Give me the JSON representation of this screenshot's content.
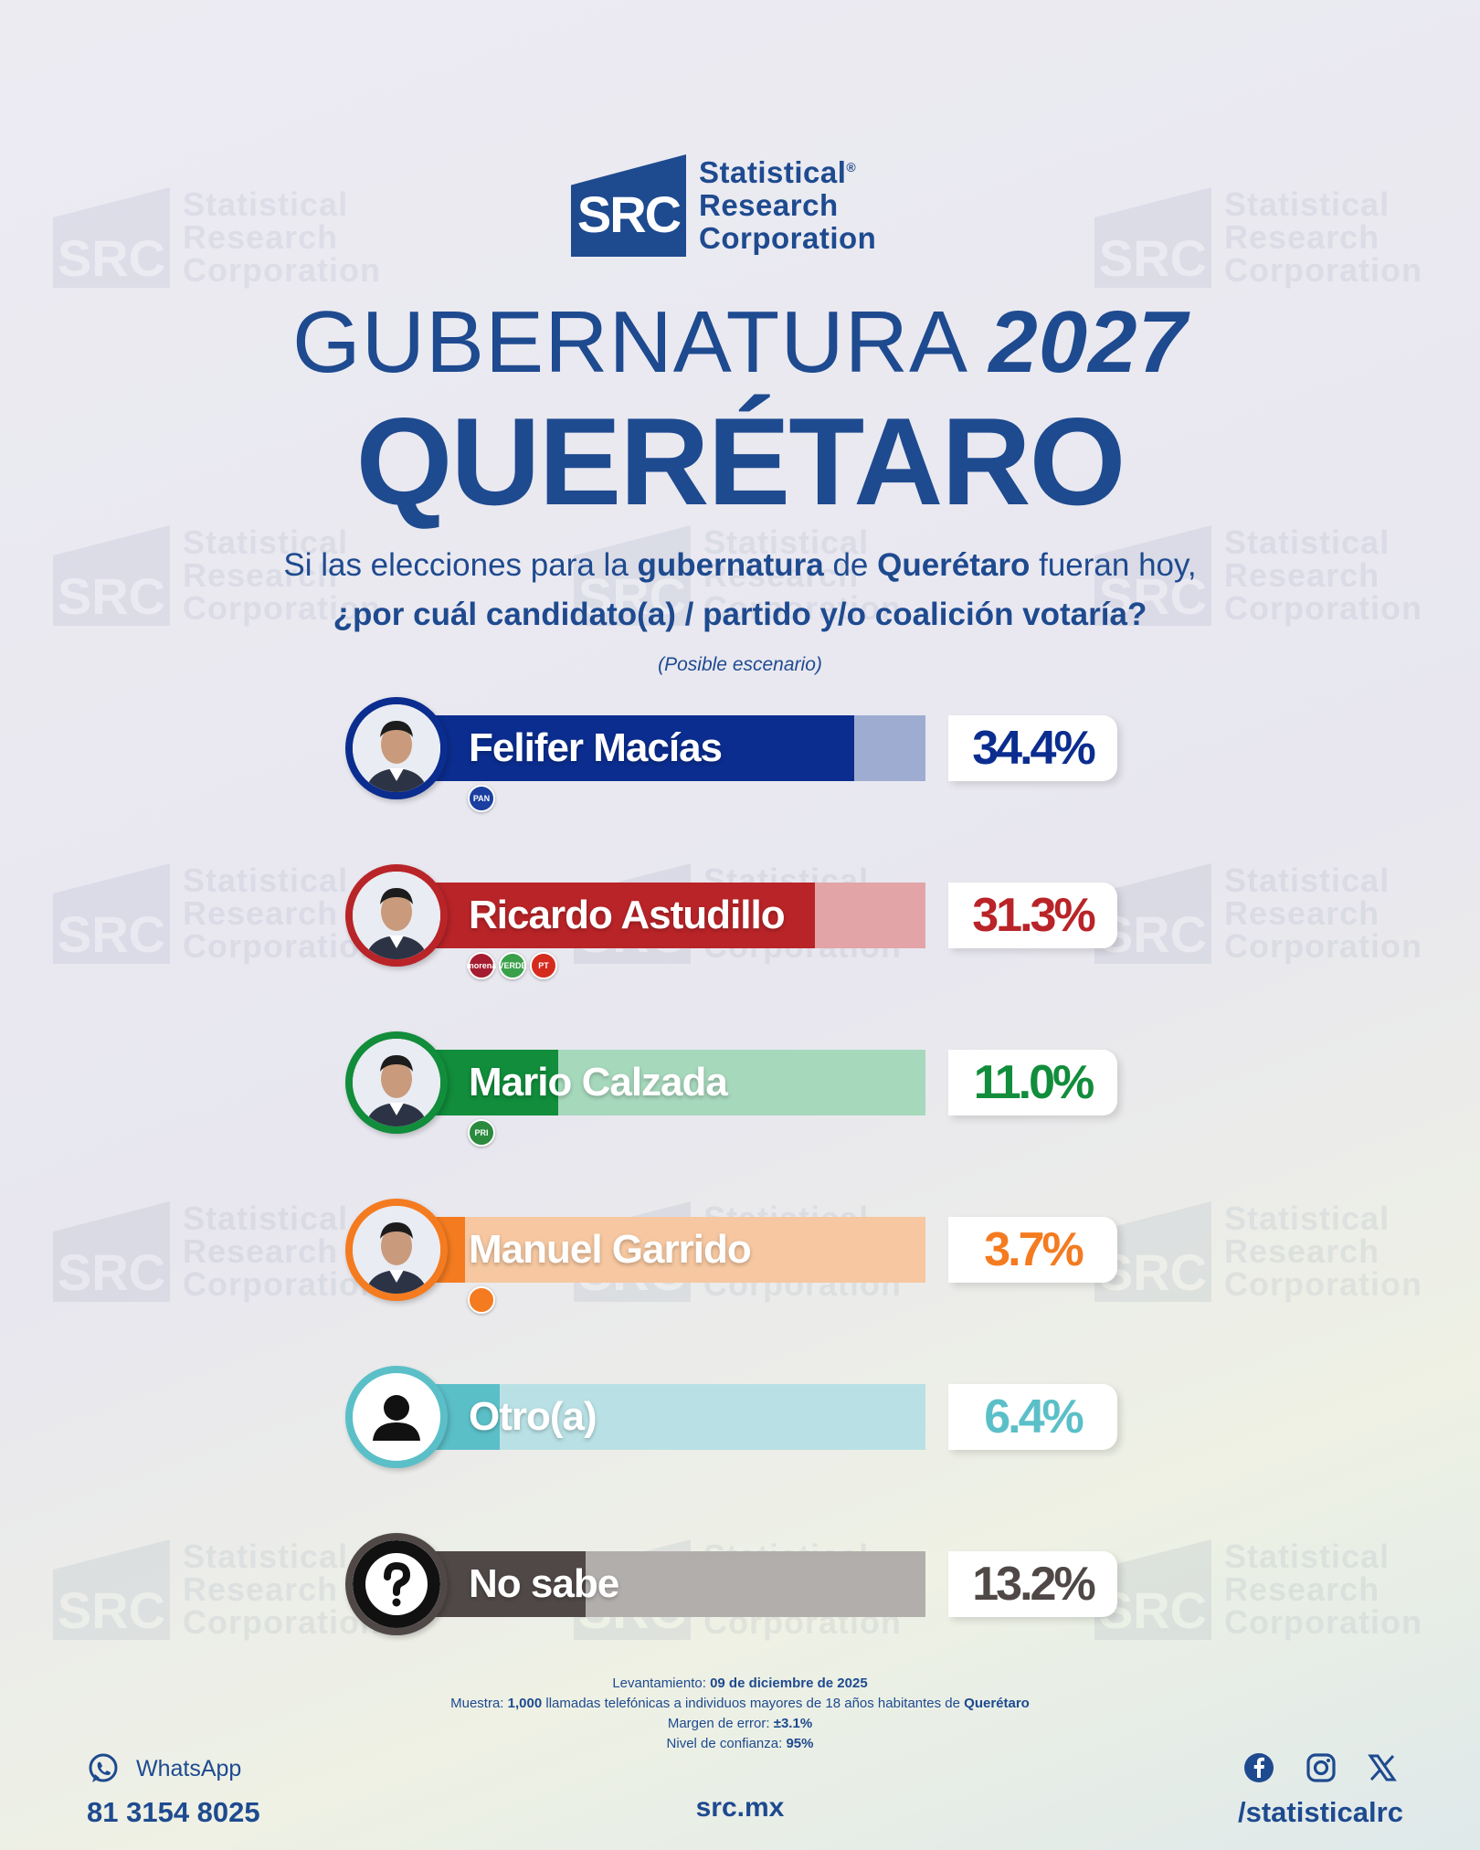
{
  "brand": {
    "logo_mark": "SRC",
    "logo_line1": "Statistical",
    "logo_line2": "Research",
    "logo_line3": "Corporation",
    "registered": "®"
  },
  "header": {
    "title_thin": "GUBERNATURA",
    "title_year": "2027",
    "state": "QUERÉTARO",
    "question_p1": "Si las elecciones para la ",
    "question_b1": "gubernatura",
    "question_p2": " de ",
    "question_b2": "Querétaro",
    "question_p3": " fueran hoy,",
    "question_line2": "¿por cuál candidato(a) / partido y/o coalición votaría?",
    "scenario": "(Posible escenario)"
  },
  "chart_data": {
    "type": "bar",
    "orientation": "horizontal",
    "ylim": [
      0,
      100
    ],
    "categories": [
      "Felifer Macías",
      "Ricardo Astudillo",
      "Mario Calzada",
      "Manuel Garrido",
      "Otro(a)",
      "No sabe"
    ],
    "values": [
      34.4,
      31.3,
      11.0,
      3.7,
      6.4,
      13.2
    ],
    "labels": [
      "34.4%",
      "31.3%",
      "11.0%",
      "3.7%",
      "6.4%",
      "13.2%"
    ],
    "parties": [
      [
        "PAN"
      ],
      [
        "morena",
        "VERDE",
        "PT"
      ],
      [
        "PRI"
      ],
      [
        "MC"
      ],
      [],
      []
    ],
    "colors": [
      "#0b2d8f",
      "#b92428",
      "#118d3b",
      "#f47b20",
      "#5bbfc8",
      "#4f4846"
    ],
    "light_colors": [
      "#9eacd2",
      "#e2a4a6",
      "#a6d8bc",
      "#f6c7a0",
      "#b9e1e5",
      "#b2aeac"
    ]
  },
  "footer": {
    "lev_label": "Levantamiento: ",
    "lev_value": "09 de diciembre de 2025",
    "muestra_label": "Muestra: ",
    "muestra_value": "1,000",
    "muestra_mid": " llamadas telefónicas a individuos mayores de 18 años habitantes de ",
    "muestra_place": "Querétaro",
    "margen_label": "Margen de error: ",
    "margen_value": "±3.1%",
    "nivel_label": "Nivel de confianza: ",
    "nivel_value": "95%",
    "whatsapp_label": "WhatsApp",
    "whatsapp_number": "81 3154 8025",
    "site": "src.mx",
    "handle": "/statisticalrc"
  }
}
